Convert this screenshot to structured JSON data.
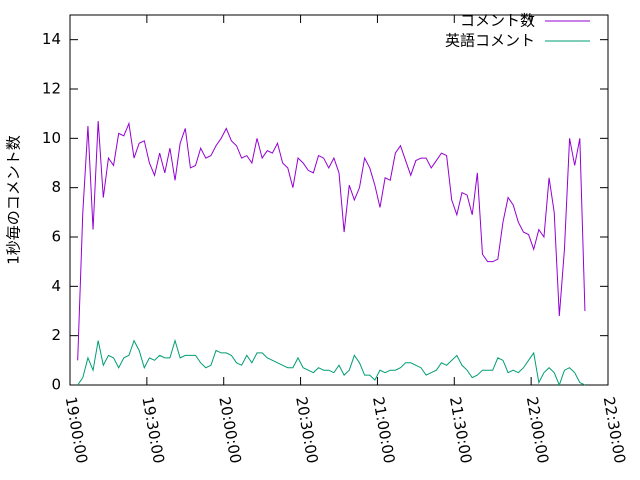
{
  "chart_data": {
    "type": "line",
    "y_label": "1秒毎のコメント数",
    "x": [
      "19:03:00",
      "19:05:00",
      "19:07:00",
      "19:09:00",
      "19:11:00",
      "19:13:00",
      "19:15:00",
      "19:17:00",
      "19:19:00",
      "19:21:00",
      "19:23:00",
      "19:25:00",
      "19:27:00",
      "19:29:00",
      "19:31:00",
      "19:33:00",
      "19:35:00",
      "19:37:00",
      "19:39:00",
      "19:41:00",
      "19:43:00",
      "19:45:00",
      "19:47:00",
      "19:49:00",
      "19:51:00",
      "19:53:00",
      "19:55:00",
      "19:57:00",
      "19:59:00",
      "20:01:00",
      "20:03:00",
      "20:05:00",
      "20:07:00",
      "20:09:00",
      "20:11:00",
      "20:13:00",
      "20:15:00",
      "20:17:00",
      "20:19:00",
      "20:21:00",
      "20:23:00",
      "20:25:00",
      "20:27:00",
      "20:29:00",
      "20:31:00",
      "20:33:00",
      "20:35:00",
      "20:37:00",
      "20:39:00",
      "20:41:00",
      "20:43:00",
      "20:45:00",
      "20:47:00",
      "20:49:00",
      "20:51:00",
      "20:53:00",
      "20:55:00",
      "20:57:00",
      "20:59:00",
      "21:01:00",
      "21:03:00",
      "21:05:00",
      "21:07:00",
      "21:09:00",
      "21:11:00",
      "21:13:00",
      "21:15:00",
      "21:17:00",
      "21:19:00",
      "21:21:00",
      "21:23:00",
      "21:25:00",
      "21:27:00",
      "21:29:00",
      "21:31:00",
      "21:33:00",
      "21:35:00",
      "21:37:00",
      "21:39:00",
      "21:41:00",
      "21:43:00",
      "21:45:00",
      "21:47:00",
      "21:49:00",
      "21:51:00",
      "21:53:00",
      "21:55:00",
      "21:57:00",
      "21:59:00",
      "22:01:00",
      "22:03:00",
      "22:05:00",
      "22:07:00",
      "22:09:00",
      "22:11:00",
      "22:13:00",
      "22:15:00",
      "22:17:00",
      "22:19:00",
      "22:21:00"
    ],
    "series": [
      {
        "name": "コメント数",
        "color": "#9400d3",
        "values": [
          1.0,
          7.0,
          10.5,
          6.3,
          10.7,
          7.6,
          9.2,
          8.9,
          10.2,
          10.1,
          10.6,
          9.2,
          9.8,
          9.9,
          9.0,
          8.5,
          9.4,
          8.6,
          9.6,
          8.3,
          9.8,
          10.4,
          8.8,
          8.9,
          9.6,
          9.2,
          9.3,
          9.7,
          10.0,
          10.4,
          9.9,
          9.7,
          9.2,
          9.3,
          9.0,
          10.0,
          9.2,
          9.5,
          9.4,
          9.8,
          9.0,
          8.8,
          8.0,
          9.2,
          9.0,
          8.7,
          8.6,
          9.3,
          9.2,
          8.8,
          9.2,
          8.6,
          6.2,
          8.1,
          7.5,
          8.0,
          9.2,
          8.8,
          8.1,
          7.2,
          8.4,
          8.3,
          9.4,
          9.7,
          9.1,
          8.5,
          9.1,
          9.2,
          9.2,
          8.8,
          9.1,
          9.4,
          9.3,
          7.5,
          6.9,
          7.8,
          7.7,
          6.9,
          8.6,
          5.3,
          5.0,
          5.0,
          5.1,
          6.6,
          7.6,
          7.3,
          6.6,
          6.2,
          6.1,
          5.5,
          6.3,
          6.0,
          8.4,
          7.0,
          2.8,
          5.5,
          10.0,
          8.9,
          10.0,
          3.0
        ]
      },
      {
        "name": "英語コメント",
        "color": "#009e73",
        "values": [
          0.0,
          0.3,
          1.1,
          0.6,
          1.8,
          0.8,
          1.2,
          1.1,
          0.7,
          1.1,
          1.2,
          1.8,
          1.4,
          0.7,
          1.1,
          1.0,
          1.2,
          1.1,
          1.1,
          1.8,
          1.1,
          1.2,
          1.2,
          1.2,
          0.9,
          0.7,
          0.8,
          1.4,
          1.3,
          1.3,
          1.2,
          0.9,
          0.8,
          1.2,
          0.9,
          1.3,
          1.3,
          1.1,
          1.0,
          0.9,
          0.8,
          0.7,
          0.7,
          1.1,
          0.7,
          0.6,
          0.5,
          0.7,
          0.6,
          0.6,
          0.5,
          0.8,
          0.4,
          0.6,
          1.2,
          0.9,
          0.4,
          0.4,
          0.2,
          0.6,
          0.5,
          0.6,
          0.6,
          0.7,
          0.9,
          0.9,
          0.8,
          0.7,
          0.4,
          0.5,
          0.6,
          0.9,
          0.8,
          1.0,
          1.2,
          0.8,
          0.6,
          0.3,
          0.4,
          0.6,
          0.6,
          0.6,
          1.1,
          1.0,
          0.5,
          0.6,
          0.5,
          0.7,
          1.0,
          1.3,
          0.1,
          0.5,
          0.7,
          0.5,
          0.0,
          0.6,
          0.7,
          0.5,
          0.1,
          0.0
        ]
      }
    ],
    "xlim": [
      "19:00:00",
      "22:30:00"
    ],
    "xticks": [
      "19:00:00",
      "19:30:00",
      "20:00:00",
      "20:30:00",
      "21:00:00",
      "21:30:00",
      "22:00:00",
      "22:30:00"
    ],
    "ylim": [
      0,
      15
    ],
    "yticks": [
      0,
      2,
      4,
      6,
      8,
      10,
      12,
      14
    ],
    "legend": "top-right"
  }
}
